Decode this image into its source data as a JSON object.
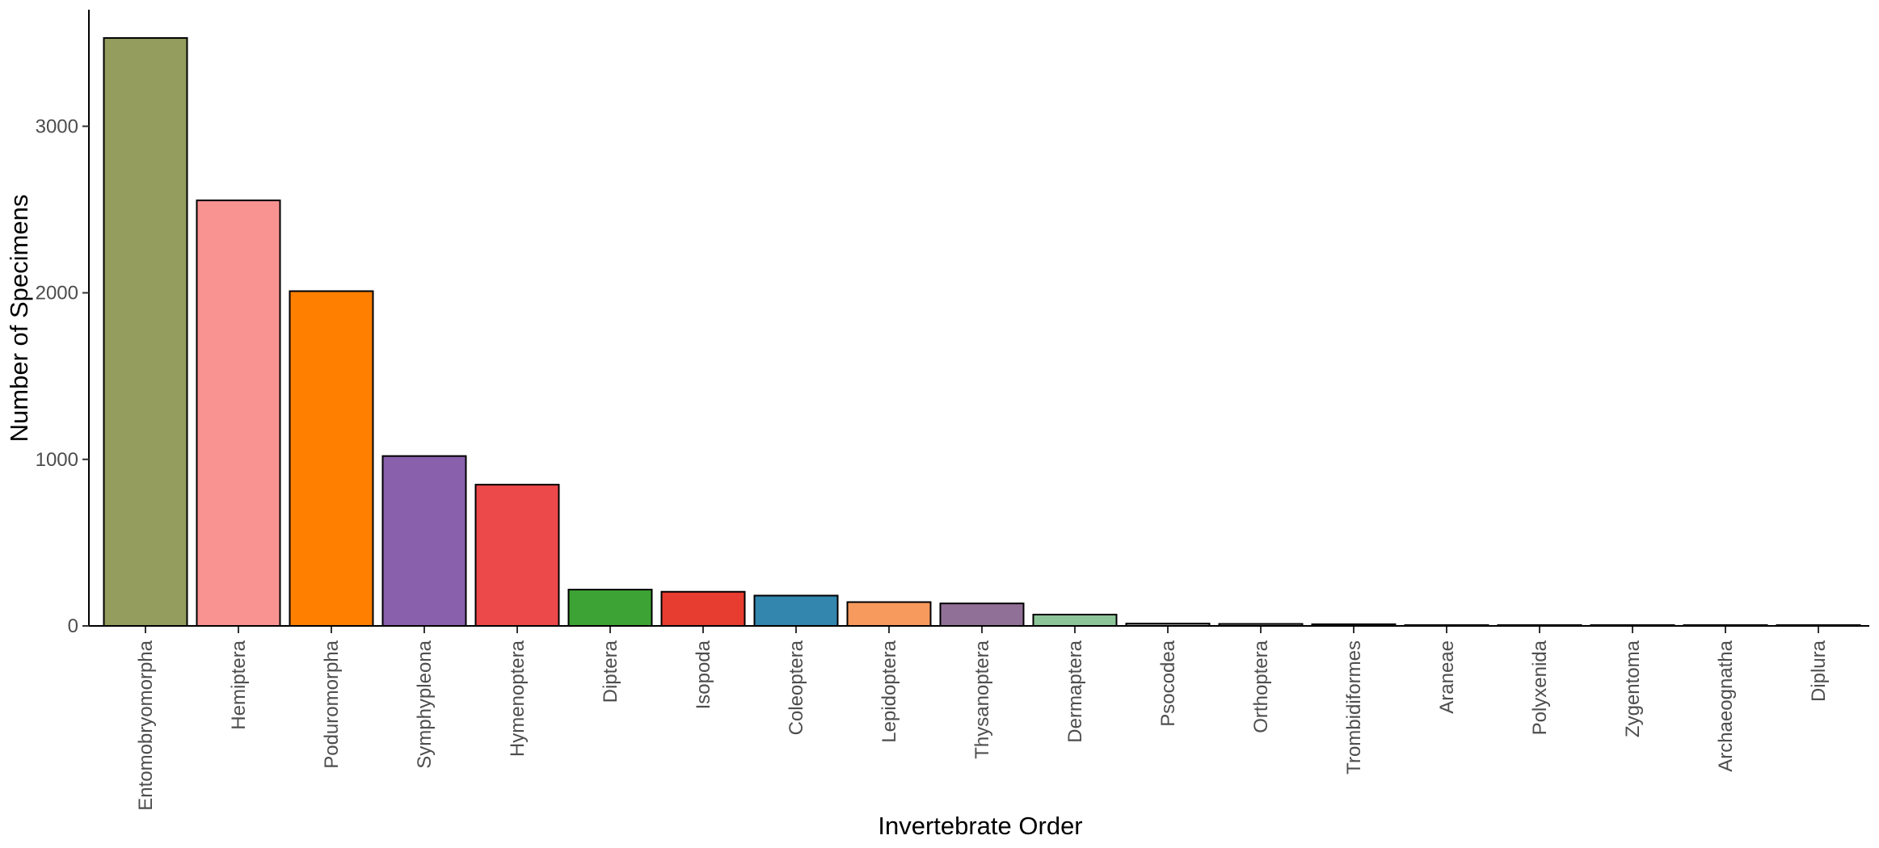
{
  "chart_data": {
    "type": "bar",
    "xlabel": "Invertebrate Order",
    "ylabel": "Number of Specimens",
    "ylim": [
      0,
      3700
    ],
    "yticks": [
      0,
      1000,
      2000,
      3000
    ],
    "grid": false,
    "legend": "none",
    "categories": [
      "Entomobryomorpha",
      "Hemiptera",
      "Poduromorpha",
      "Symphypleona",
      "Hymenoptera",
      "Diptera",
      "Isopoda",
      "Coleoptera",
      "Lepidoptera",
      "Thysanoptera",
      "Dermaptera",
      "Psocodea",
      "Orthoptera",
      "Trombidiformes",
      "Araneae",
      "Polyxenida",
      "Zygentoma",
      "Archaeognatha",
      "Diplura"
    ],
    "values": [
      3530,
      2555,
      2010,
      1020,
      848,
      218,
      205,
      182,
      143,
      135,
      68,
      14,
      12,
      10,
      4,
      3,
      2,
      2,
      1
    ],
    "colors": [
      "#949d5e",
      "#f99392",
      "#ff7f00",
      "#8960ab",
      "#ec494b",
      "#3da334",
      "#e63d30",
      "#3386ad",
      "#f79a5e",
      "#917097",
      "#8cc597",
      "#a6a6a6",
      "#a6a6a6",
      "#a6a6a6",
      "#a6a6a6",
      "#a6a6a6",
      "#a6a6a6",
      "#a6a6a6",
      "#a6a6a6"
    ]
  }
}
